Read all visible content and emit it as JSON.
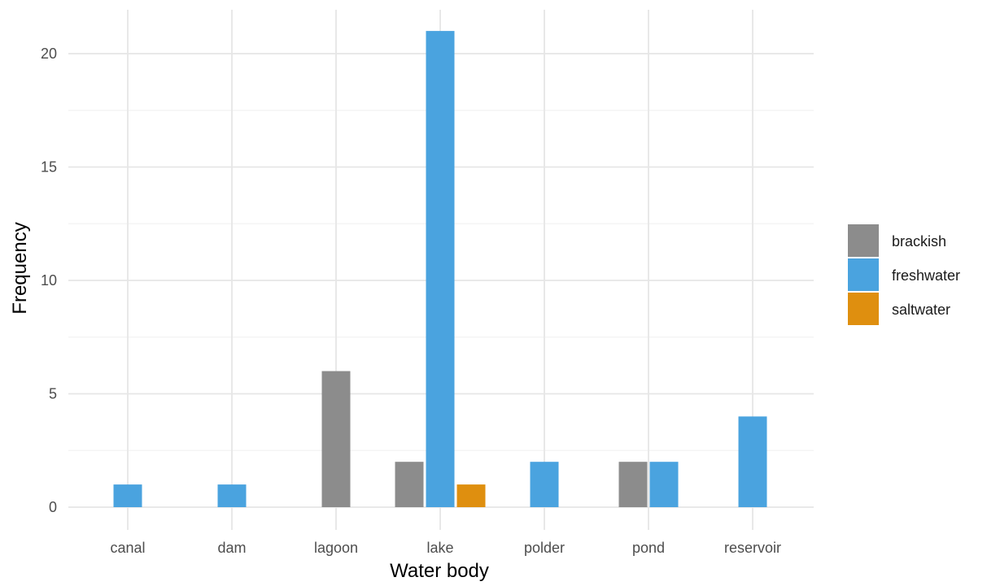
{
  "chart_data": {
    "type": "bar",
    "categories": [
      "canal",
      "dam",
      "lagoon",
      "lake",
      "polder",
      "pond",
      "reservoir"
    ],
    "series": [
      {
        "name": "brackish",
        "color": "#8c8c8c",
        "values": [
          0,
          0,
          6,
          2,
          0,
          2,
          0
        ]
      },
      {
        "name": "freshwater",
        "color": "#4aa3df",
        "values": [
          1,
          1,
          0,
          21,
          2,
          2,
          4
        ]
      },
      {
        "name": "saltwater",
        "color": "#df8f0f",
        "values": [
          0,
          0,
          0,
          1,
          0,
          0,
          0
        ]
      }
    ],
    "xlabel": "Water body",
    "ylabel": "Frequency",
    "ylim": [
      0,
      22
    ],
    "yticks": [
      0,
      5,
      10,
      15,
      20
    ],
    "grid": true,
    "legend": "right"
  }
}
